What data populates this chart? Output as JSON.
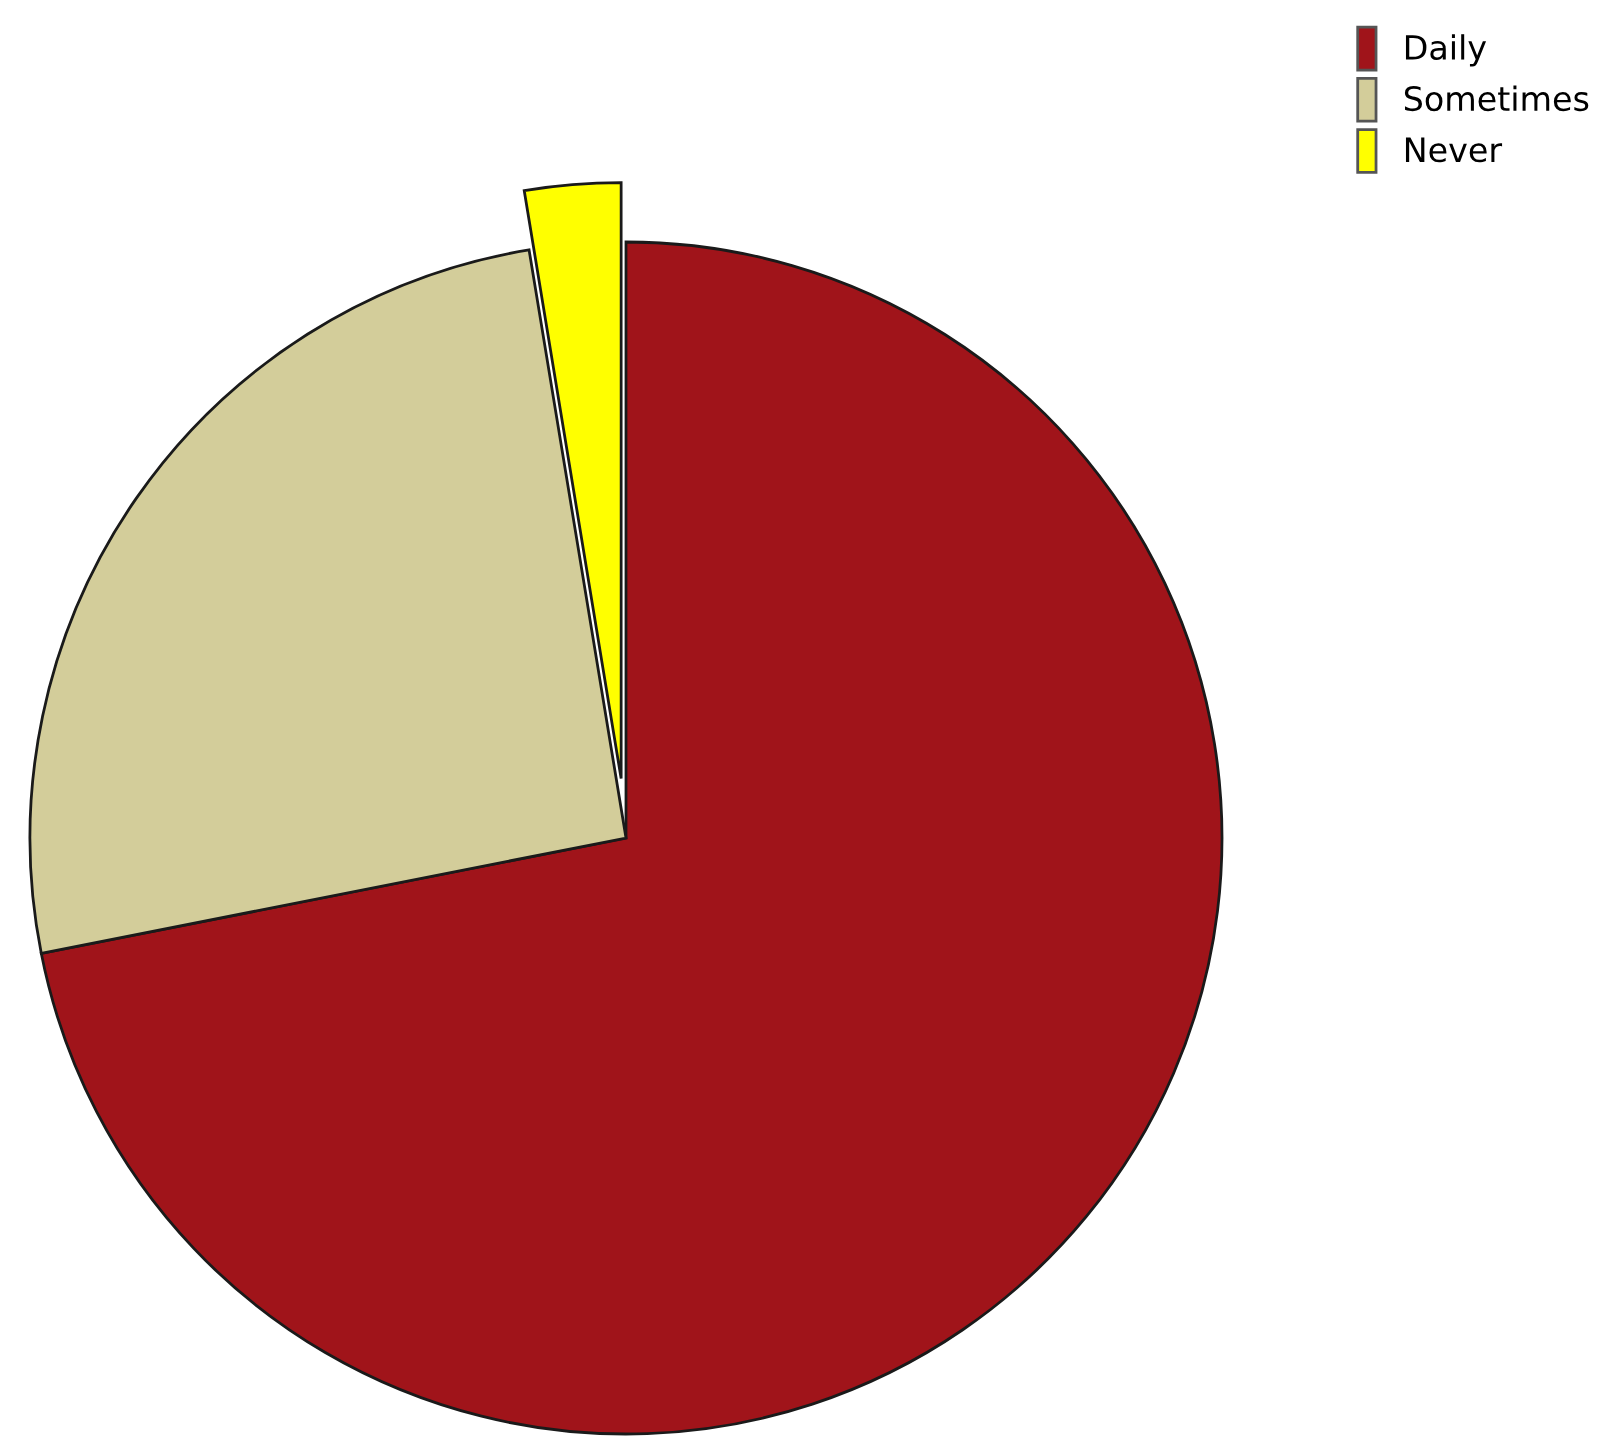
{
  "chart_data": {
    "type": "pie",
    "categories": [
      "Daily",
      "Sometimes",
      "Never"
    ],
    "values": [
      71.9,
      25.5,
      2.6
    ],
    "colors": [
      "#a0141a",
      "#d3cd9a",
      "#ffff00"
    ],
    "legend": "top right"
  }
}
